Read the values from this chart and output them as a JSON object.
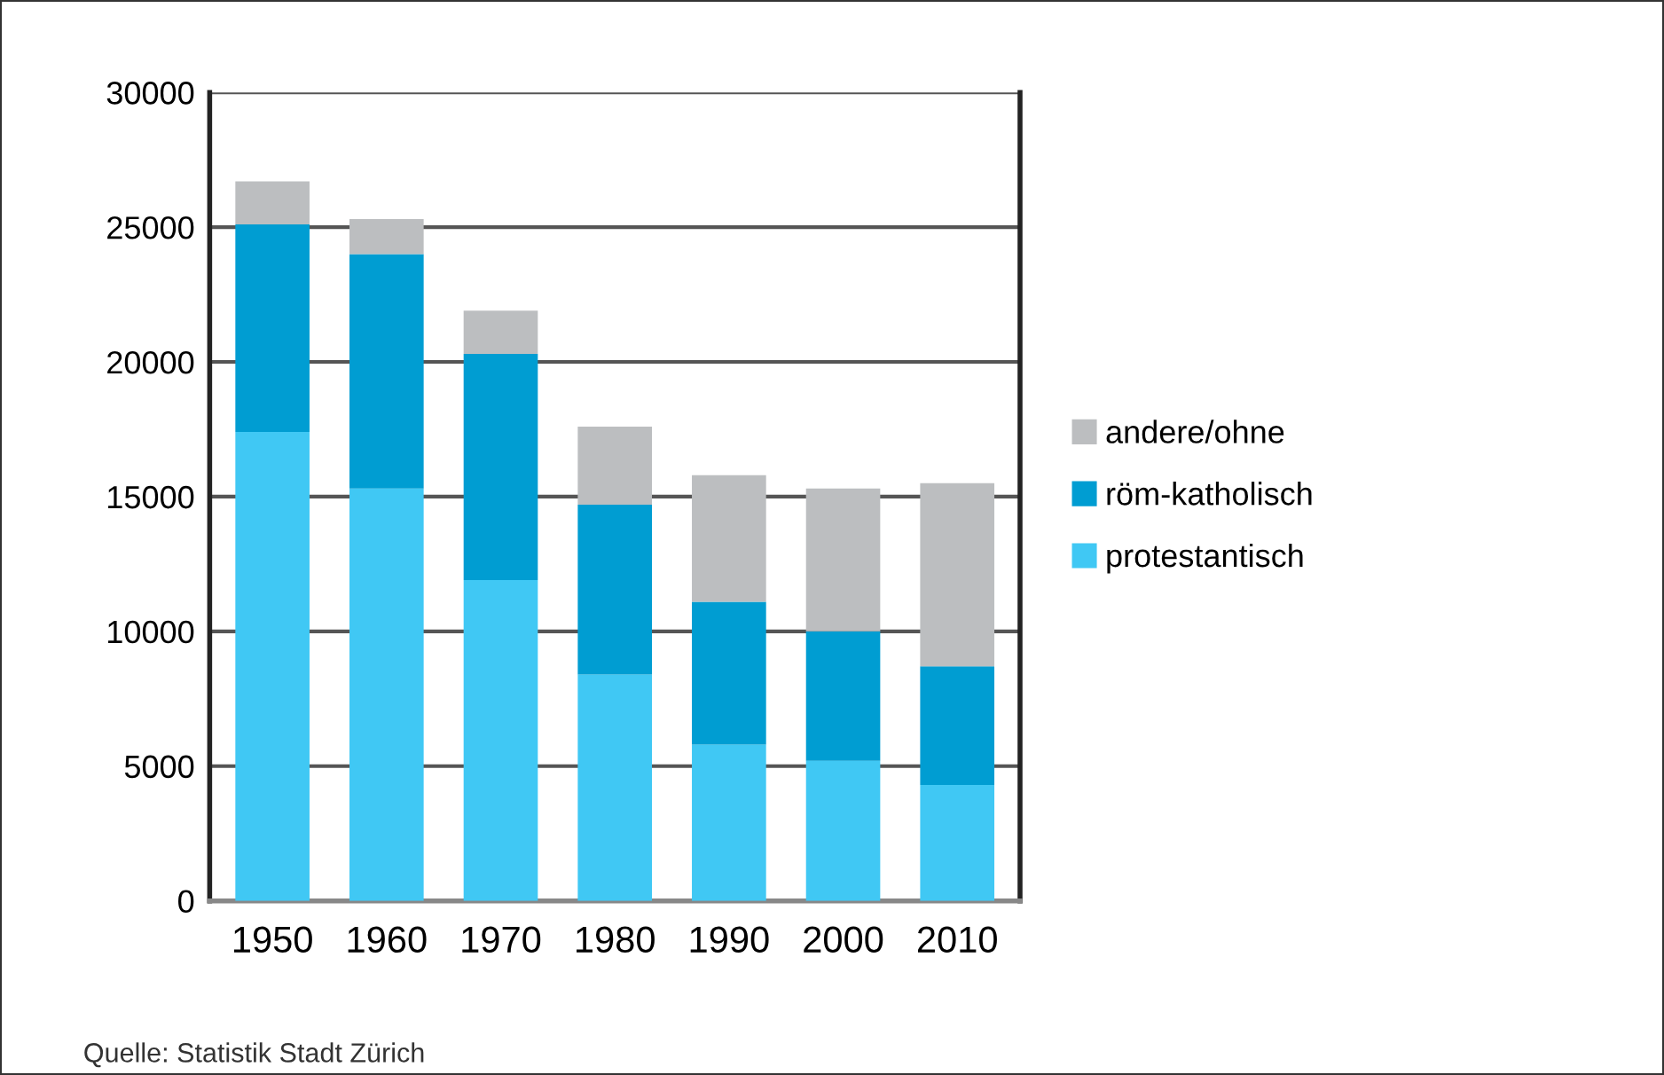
{
  "chart_data": {
    "type": "bar",
    "stacked": true,
    "categories": [
      "1950",
      "1960",
      "1970",
      "1980",
      "1990",
      "2000",
      "2010"
    ],
    "series": [
      {
        "name": "protestantisch",
        "color": "#40c8f4",
        "values": [
          17400,
          15300,
          11900,
          8400,
          5800,
          5200,
          4300
        ]
      },
      {
        "name": "röm-katholisch",
        "color": "#009dd2",
        "values": [
          7700,
          8700,
          8400,
          6300,
          5300,
          4800,
          4400
        ]
      },
      {
        "name": "andere/ohne",
        "color": "#bcbec0",
        "values": [
          1600,
          1300,
          1600,
          2900,
          4700,
          5300,
          6800
        ]
      }
    ],
    "ylim": [
      0,
      30000
    ],
    "yticks": [
      0,
      5000,
      10000,
      15000,
      20000,
      25000,
      30000
    ],
    "grid": "y",
    "legend": "right",
    "annotations": [
      "Quelle: Statistik Stadt Zürich"
    ]
  }
}
